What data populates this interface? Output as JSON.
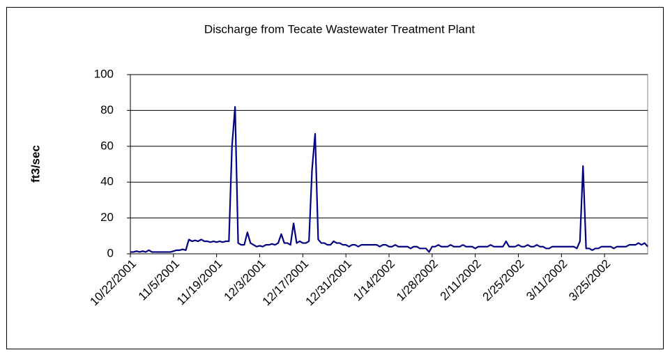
{
  "chart_data": {
    "type": "line",
    "title": "Discharge from Tecate Wastewater Treatment Plant",
    "y_label": "ft3/sec",
    "categories": [
      "10/22/2001",
      null,
      null,
      null,
      null,
      null,
      null,
      null,
      null,
      null,
      null,
      null,
      null,
      null,
      "11/5/2001",
      null,
      null,
      null,
      null,
      null,
      null,
      null,
      null,
      null,
      null,
      null,
      null,
      null,
      "11/19/2001",
      null,
      null,
      null,
      null,
      null,
      null,
      null,
      null,
      null,
      null,
      null,
      null,
      null,
      "12/3/2001",
      null,
      null,
      null,
      null,
      null,
      null,
      null,
      null,
      null,
      null,
      null,
      null,
      null,
      "12/17/2001",
      null,
      null,
      null,
      null,
      null,
      null,
      null,
      null,
      null,
      null,
      null,
      null,
      null,
      "12/31/2001",
      null,
      null,
      null,
      null,
      null,
      null,
      null,
      null,
      null,
      null,
      null,
      null,
      null,
      "1/14/2002",
      null,
      null,
      null,
      null,
      null,
      null,
      null,
      null,
      null,
      null,
      null,
      null,
      null,
      "1/28/2002",
      null,
      null,
      null,
      null,
      null,
      null,
      null,
      null,
      null,
      null,
      null,
      null,
      null,
      "2/11/2002",
      null,
      null,
      null,
      null,
      null,
      null,
      null,
      null,
      null,
      null,
      null,
      null,
      null,
      "2/25/2002",
      null,
      null,
      null,
      null,
      null,
      null,
      null,
      null,
      null,
      null,
      null,
      null,
      null,
      "3/11/2002",
      null,
      null,
      null,
      null,
      null,
      null,
      null,
      null,
      null,
      null,
      null,
      null,
      null,
      "3/25/2002",
      null,
      null,
      null,
      null,
      null,
      null,
      null,
      null,
      null,
      null,
      null,
      null,
      null,
      null
    ],
    "series": [
      {
        "name": "Discharge",
        "color": "#000080",
        "values": [
          1,
          1,
          1.5,
          1,
          1.5,
          1,
          2,
          1,
          1,
          1,
          1,
          1,
          1,
          1,
          1.5,
          2,
          2,
          2.5,
          2,
          8,
          7,
          7.5,
          7,
          8,
          7,
          7,
          6.5,
          7,
          6.5,
          7,
          6.5,
          7,
          7,
          60,
          82,
          6,
          5,
          5,
          12,
          6,
          5,
          4,
          4.5,
          4,
          5,
          5,
          5.5,
          5,
          6,
          11,
          6,
          6,
          5,
          17,
          6,
          7,
          6,
          6,
          7,
          47,
          67,
          8,
          6,
          6,
          5,
          5,
          7,
          6,
          6,
          5,
          5,
          4,
          5,
          5,
          4,
          5,
          5,
          5,
          5,
          5,
          5,
          4,
          5,
          5,
          4,
          4,
          5,
          4,
          4,
          4,
          4,
          3,
          4,
          4,
          3,
          3,
          3,
          1,
          4,
          4,
          5,
          4,
          4,
          4,
          5,
          4,
          4,
          4,
          5,
          4,
          4,
          4,
          3,
          4,
          4,
          4,
          4,
          5,
          4,
          4,
          4,
          4,
          7,
          4,
          4,
          4,
          5,
          4,
          4,
          5,
          4,
          4,
          5,
          4,
          4,
          3,
          3,
          4,
          4,
          4,
          4,
          4,
          4,
          4,
          4,
          3,
          7,
          49,
          3,
          3,
          2,
          3,
          3,
          4,
          4,
          4,
          4,
          3,
          4,
          4,
          4,
          4,
          5,
          5,
          5,
          6,
          5,
          6,
          4
        ]
      }
    ],
    "ylim": [
      0,
      100
    ],
    "yticks": [
      0,
      20,
      40,
      60,
      80,
      100
    ],
    "grid": true
  }
}
